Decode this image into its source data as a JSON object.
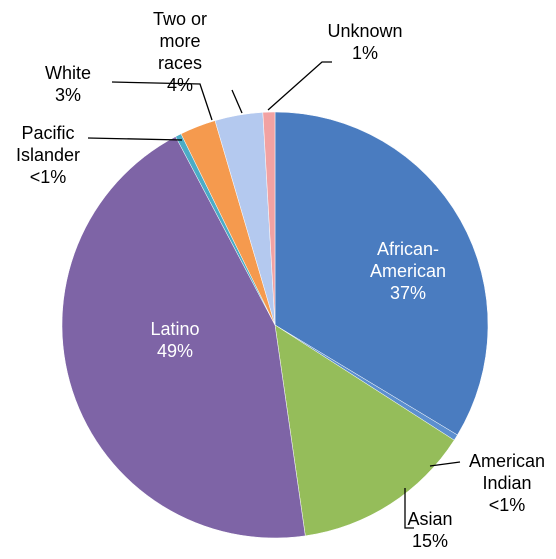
{
  "chart_data": {
    "type": "pie",
    "categories": [
      "African-American",
      "American Indian",
      "Asian",
      "Latino",
      "Pacific Islander",
      "White",
      "Two or more races",
      "Unknown"
    ],
    "values": [
      37,
      0.5,
      15,
      49,
      0.5,
      3,
      4,
      1
    ],
    "value_labels": [
      "37%",
      "<1%",
      "15%",
      "49%",
      "<1%",
      "3%",
      "4%",
      "1%"
    ],
    "colors": [
      "#4a7cc0",
      "#5c8fcf",
      "#95bd5a",
      "#7e64a6",
      "#4bacc6",
      "#f59a4e",
      "#b4c9ef",
      "#f2a2a2"
    ]
  }
}
